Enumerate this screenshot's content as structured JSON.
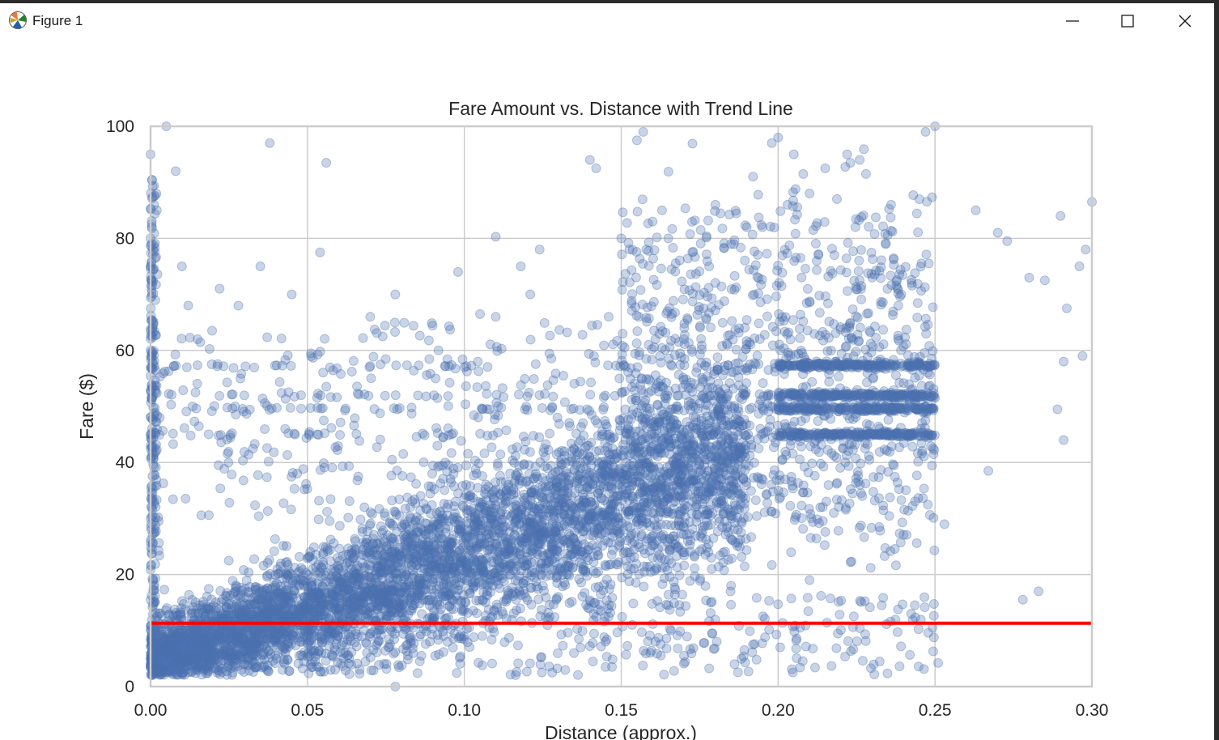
{
  "window": {
    "title": "Figure 1",
    "minimize_icon": "minimize-icon",
    "maximize_icon": "maximize-icon",
    "close_icon": "close-icon"
  },
  "chart_data": {
    "type": "scatter",
    "title": "Fare Amount vs. Distance with Trend Line",
    "xlabel": "Distance (approx.)",
    "ylabel": "Fare ($)",
    "xlim": [
      0.0,
      0.3
    ],
    "ylim": [
      0,
      100
    ],
    "x_ticks": [
      "0.00",
      "0.05",
      "0.10",
      "0.15",
      "0.20",
      "0.25",
      "0.30"
    ],
    "y_ticks": [
      "0",
      "20",
      "40",
      "60",
      "80",
      "100"
    ],
    "grid": true,
    "point_color": "#4c72b0",
    "point_alpha": 0.3,
    "trend_line": {
      "color": "#ff0000",
      "y": 11.3,
      "x_range": [
        0.0,
        0.3
      ]
    },
    "horizontal_bands": [
      {
        "y": 57.3,
        "x_range": [
          0.2,
          0.25
        ]
      },
      {
        "y": 52.0,
        "x_range": [
          0.2,
          0.25
        ]
      },
      {
        "y": 49.6,
        "x_range": [
          0.2,
          0.25
        ]
      },
      {
        "y": 45.0,
        "x_range": [
          0.2,
          0.25
        ]
      }
    ],
    "series": [
      {
        "values": [
          [
            0.0,
            3.5
          ],
          [
            0.0,
            30
          ],
          [
            0.0,
            45
          ],
          [
            0.0,
            60
          ],
          [
            0.0,
            75
          ],
          [
            0.0,
            80
          ],
          [
            0.0,
            95
          ],
          [
            0.002,
            85
          ],
          [
            0.005,
            100
          ],
          [
            0.008,
            92
          ],
          [
            0.01,
            75
          ],
          [
            0.012,
            68
          ],
          [
            0.015,
            62
          ],
          [
            0.022,
            71
          ],
          [
            0.028,
            68
          ],
          [
            0.035,
            75
          ],
          [
            0.038,
            97
          ],
          [
            0.045,
            70
          ],
          [
            0.054,
            77.5
          ],
          [
            0.056,
            93.5
          ],
          [
            0.07,
            66
          ],
          [
            0.078,
            70
          ],
          [
            0.098,
            74
          ],
          [
            0.1,
            57
          ],
          [
            0.105,
            66.5
          ],
          [
            0.11,
            66
          ],
          [
            0.11,
            80.3
          ],
          [
            0.118,
            75
          ],
          [
            0.121,
            70
          ],
          [
            0.124,
            78
          ],
          [
            0.14,
            94
          ],
          [
            0.142,
            92.5
          ],
          [
            0.146,
            66
          ],
          [
            0.15,
            80
          ],
          [
            0.155,
            97.5
          ],
          [
            0.157,
            99
          ],
          [
            0.158,
            78
          ],
          [
            0.16,
            83
          ],
          [
            0.163,
            85
          ],
          [
            0.165,
            80
          ],
          [
            0.166,
            74.5
          ],
          [
            0.17,
            62
          ],
          [
            0.178,
            75
          ],
          [
            0.18,
            86
          ],
          [
            0.185,
            79
          ],
          [
            0.19,
            82
          ],
          [
            0.192,
            91
          ],
          [
            0.195,
            82
          ],
          [
            0.198,
            97
          ],
          [
            0.2,
            98
          ],
          [
            0.203,
            86
          ],
          [
            0.205,
            95
          ],
          [
            0.208,
            91.5
          ],
          [
            0.21,
            88
          ],
          [
            0.215,
            92.5
          ],
          [
            0.222,
            95
          ],
          [
            0.226,
            94
          ],
          [
            0.228,
            91.5
          ],
          [
            0.236,
            86
          ],
          [
            0.245,
            87
          ],
          [
            0.247,
            99
          ],
          [
            0.25,
            100
          ],
          [
            0.248,
            75.5
          ],
          [
            0.263,
            85
          ],
          [
            0.27,
            81
          ],
          [
            0.273,
            79.5
          ],
          [
            0.28,
            73
          ],
          [
            0.285,
            72.5
          ],
          [
            0.29,
            84
          ],
          [
            0.292,
            67.5
          ],
          [
            0.296,
            75
          ],
          [
            0.298,
            78
          ],
          [
            0.3,
            86.5
          ],
          [
            0.297,
            59
          ],
          [
            0.291,
            58
          ],
          [
            0.289,
            49.5
          ],
          [
            0.291,
            44
          ],
          [
            0.253,
            29
          ],
          [
            0.267,
            38.5
          ],
          [
            0.278,
            15.5
          ],
          [
            0.283,
            17
          ],
          [
            0.251,
            4.2
          ],
          [
            0.21,
            19
          ],
          [
            0.233,
            14.5
          ],
          [
            0.198,
            21.7
          ],
          [
            0.185,
            18
          ],
          [
            0.192,
            7.5
          ],
          [
            0.165,
            14.5
          ],
          [
            0.17,
            5.5
          ],
          [
            0.145,
            3.5
          ],
          [
            0.128,
            2.5
          ],
          [
            0.078,
            0
          ]
        ]
      }
    ]
  }
}
